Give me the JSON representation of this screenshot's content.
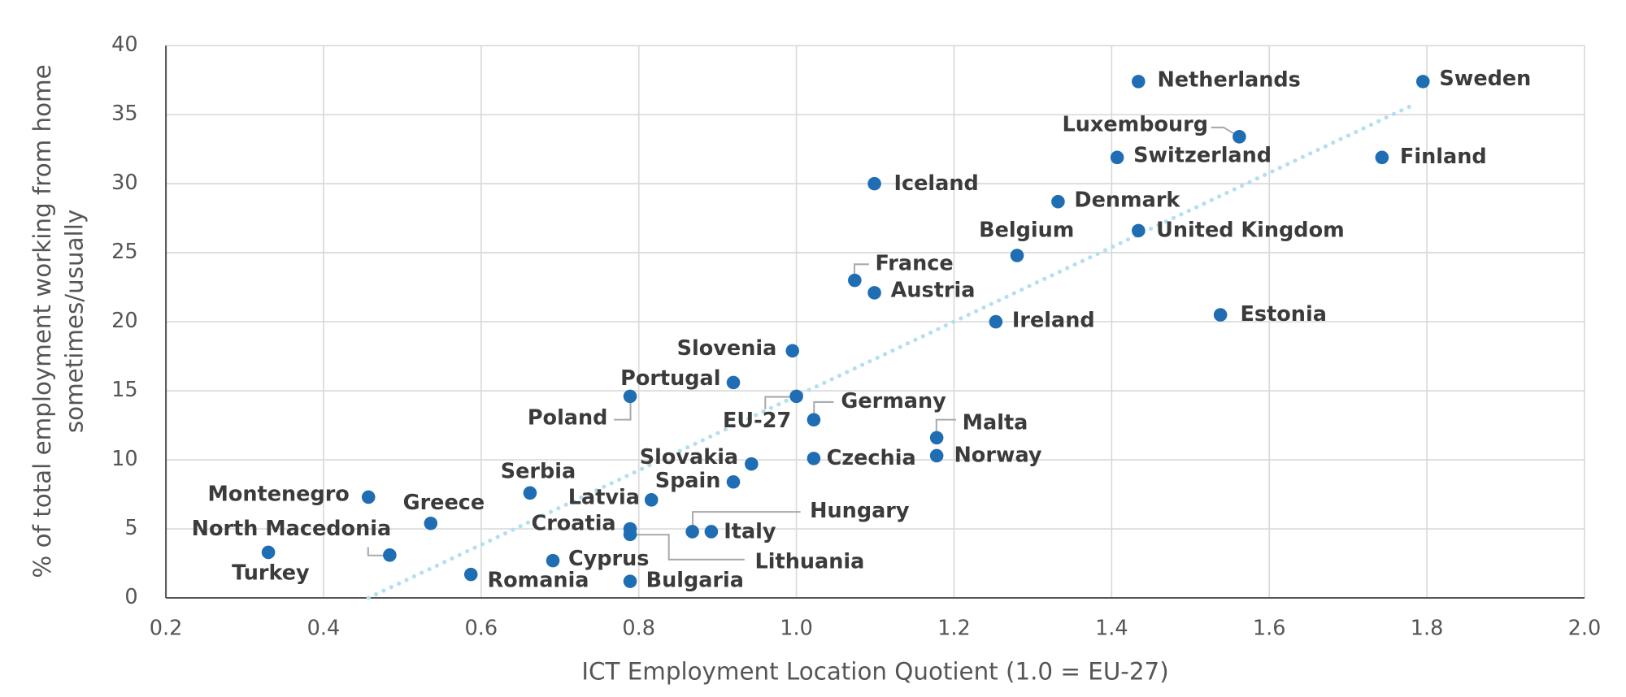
{
  "chart_data": {
    "type": "scatter",
    "xlabel": "ICT Employment Location Quotient (1.0 = EU-27)",
    "ylabel": [
      "% of total employment working from home",
      "sometimes/usually"
    ],
    "xlim": [
      0.2,
      2.0
    ],
    "xticks": [
      0.2,
      0.4,
      0.6,
      0.8,
      {
        "value": 1,
        "label": "1.0"
      },
      1.2,
      1.4,
      1.6,
      1.8,
      {
        "value": 2,
        "label": "2.0"
      }
    ],
    "ylim": [
      0,
      40
    ],
    "yticks": [
      0,
      5,
      10,
      15,
      20,
      25,
      30,
      35,
      40
    ],
    "grid": true,
    "color": "#1f6db3",
    "trendline": {
      "color": "#b3dff0",
      "x": [
        0.457,
        1.786
      ],
      "y": [
        0,
        35.8
      ]
    },
    "labels": [
      "Netherlands",
      "Sweden",
      "Luxembourg",
      "Switzerland",
      "Finland",
      "Iceland",
      "Denmark",
      "Belgium",
      "United Kingdom",
      "France",
      "Austria",
      "Ireland",
      "Estonia",
      "Slovenia",
      "Portugal",
      "Poland",
      "EU-27",
      "Germany",
      "Malta",
      "Norway",
      "Czechia",
      "Slovakia",
      "Spain",
      "Latvia",
      "Serbia",
      "Montenegro",
      "Greece",
      "Croatia",
      "Lithuania",
      "Hungary",
      "Italy",
      "North Macedonia",
      "Turkey",
      "Cyprus",
      "Romania",
      "Bulgaria"
    ],
    "x": [
      1.434,
      1.795,
      1.562,
      1.407,
      1.743,
      1.099,
      1.332,
      1.28,
      1.434,
      1.074,
      1.099,
      1.253,
      1.538,
      0.995,
      0.92,
      0.789,
      1.0,
      1.022,
      1.178,
      1.178,
      1.022,
      0.943,
      0.92,
      0.816,
      0.662,
      0.457,
      0.536,
      0.789,
      0.789,
      0.868,
      0.892,
      0.484,
      0.33,
      0.691,
      0.587,
      0.789
    ],
    "y": [
      37.4,
      37.4,
      33.4,
      31.9,
      31.9,
      30.0,
      28.7,
      24.8,
      26.6,
      23.0,
      22.1,
      20.0,
      20.5,
      17.9,
      15.6,
      14.6,
      14.6,
      12.9,
      11.6,
      10.3,
      10.1,
      9.7,
      8.4,
      7.1,
      7.6,
      7.3,
      5.4,
      5.0,
      4.6,
      4.8,
      4.8,
      3.1,
      3.3,
      2.7,
      1.7,
      1.2
    ]
  }
}
